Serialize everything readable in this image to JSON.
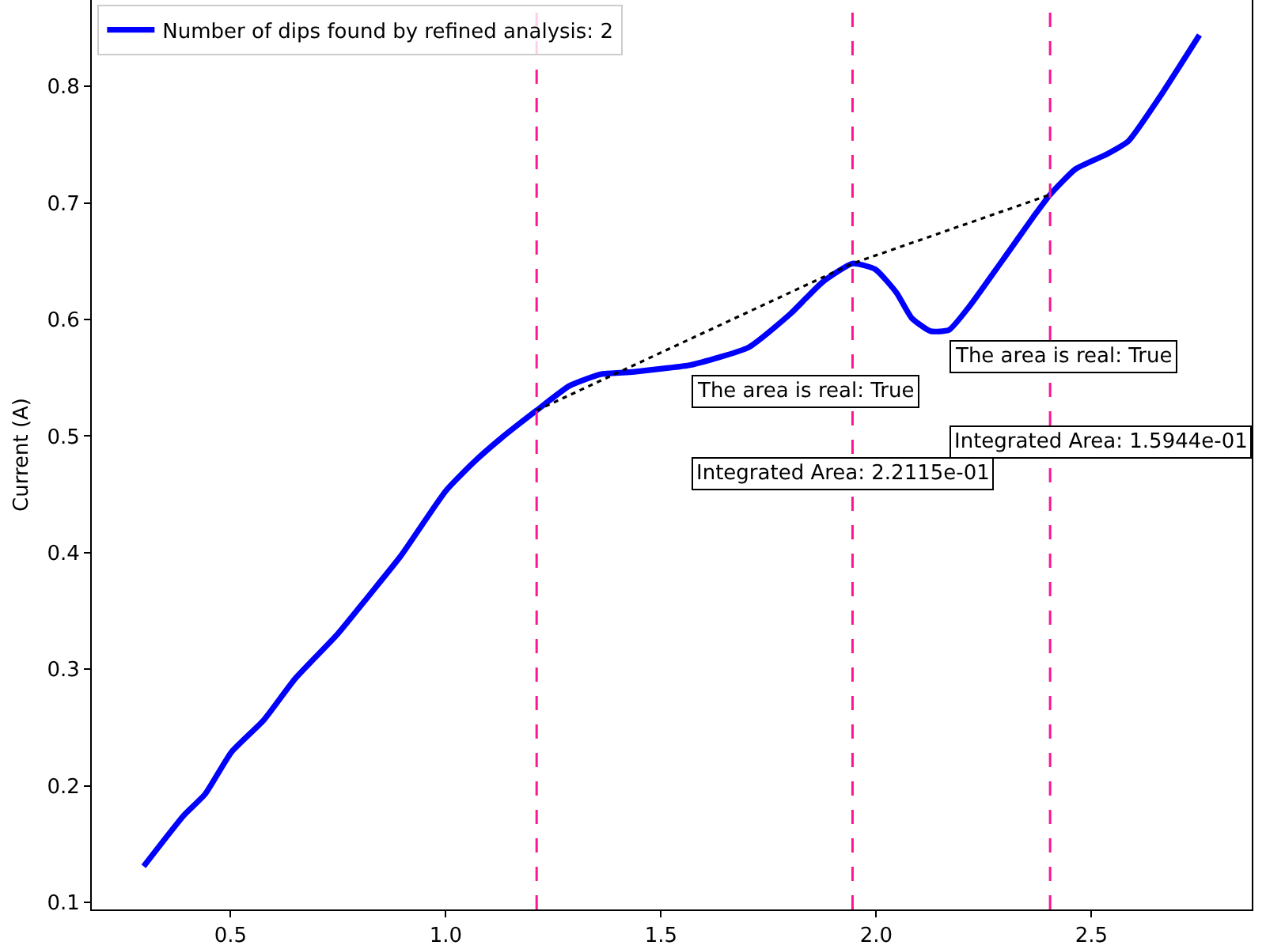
{
  "chart_data": {
    "type": "line",
    "ylabel": "Current (A)",
    "legend": "top left",
    "marker": "none",
    "line_style": "solid",
    "xlim": [
      0.1775,
      2.8725
    ],
    "ylim": [
      0.094,
      0.874
    ],
    "xticks": [
      0.5,
      {
        "value": 1,
        "label": "1.0"
      },
      1.5,
      {
        "value": 2,
        "label": "2.0"
      },
      2.5
    ],
    "yticks": [
      0.1,
      0.2,
      0.3,
      0.4,
      0.5,
      0.6,
      0.7,
      0.8
    ],
    "series": [
      {
        "name": "Number of dips found by refined analysis: 2",
        "color": "#0000ff",
        "x": [
          0.298,
          0.392,
          0.441,
          0.502,
          0.576,
          0.65,
          0.748,
          0.821,
          0.895,
          1.0,
          1.066,
          1.128,
          1.211,
          1.287,
          1.36,
          1.434,
          1.507,
          1.569,
          1.703,
          1.801,
          1.875,
          1.945,
          1.998,
          2.047,
          2.083,
          2.126,
          2.169,
          2.218,
          2.292,
          2.365,
          2.404,
          2.463,
          2.537,
          2.586,
          2.659,
          2.751
        ],
        "values": [
          0.131,
          0.175,
          0.193,
          0.229,
          0.256,
          0.292,
          0.33,
          0.363,
          0.397,
          0.453,
          0.478,
          0.498,
          0.522,
          0.543,
          0.553,
          0.555,
          0.558,
          0.561,
          0.576,
          0.605,
          0.632,
          0.648,
          0.643,
          0.623,
          0.601,
          0.59,
          0.591,
          0.612,
          0.65,
          0.688,
          0.707,
          0.729,
          0.742,
          0.753,
          0.791,
          0.844
        ]
      },
      {
        "color": "#000000",
        "line_style": "dotted",
        "x": [
          1.211,
          1.945,
          2.404
        ],
        "values": [
          0.522,
          0.648,
          0.707
        ]
      }
    ],
    "ref_lines": [
      {
        "axis": "x",
        "value": 1.211,
        "color": "#ff1493",
        "line_style": "dashed"
      },
      {
        "axis": "x",
        "value": 1.945,
        "color": "#ff1493",
        "line_style": "dashed"
      },
      {
        "axis": "x",
        "value": 2.404,
        "color": "#ff1493",
        "line_style": "dashed"
      }
    ],
    "annotations": [
      "The area is real: True",
      "Integrated Area: 2.2115e-01",
      "The area is real: True",
      "Integrated Area: 1.5944e-01"
    ]
  }
}
